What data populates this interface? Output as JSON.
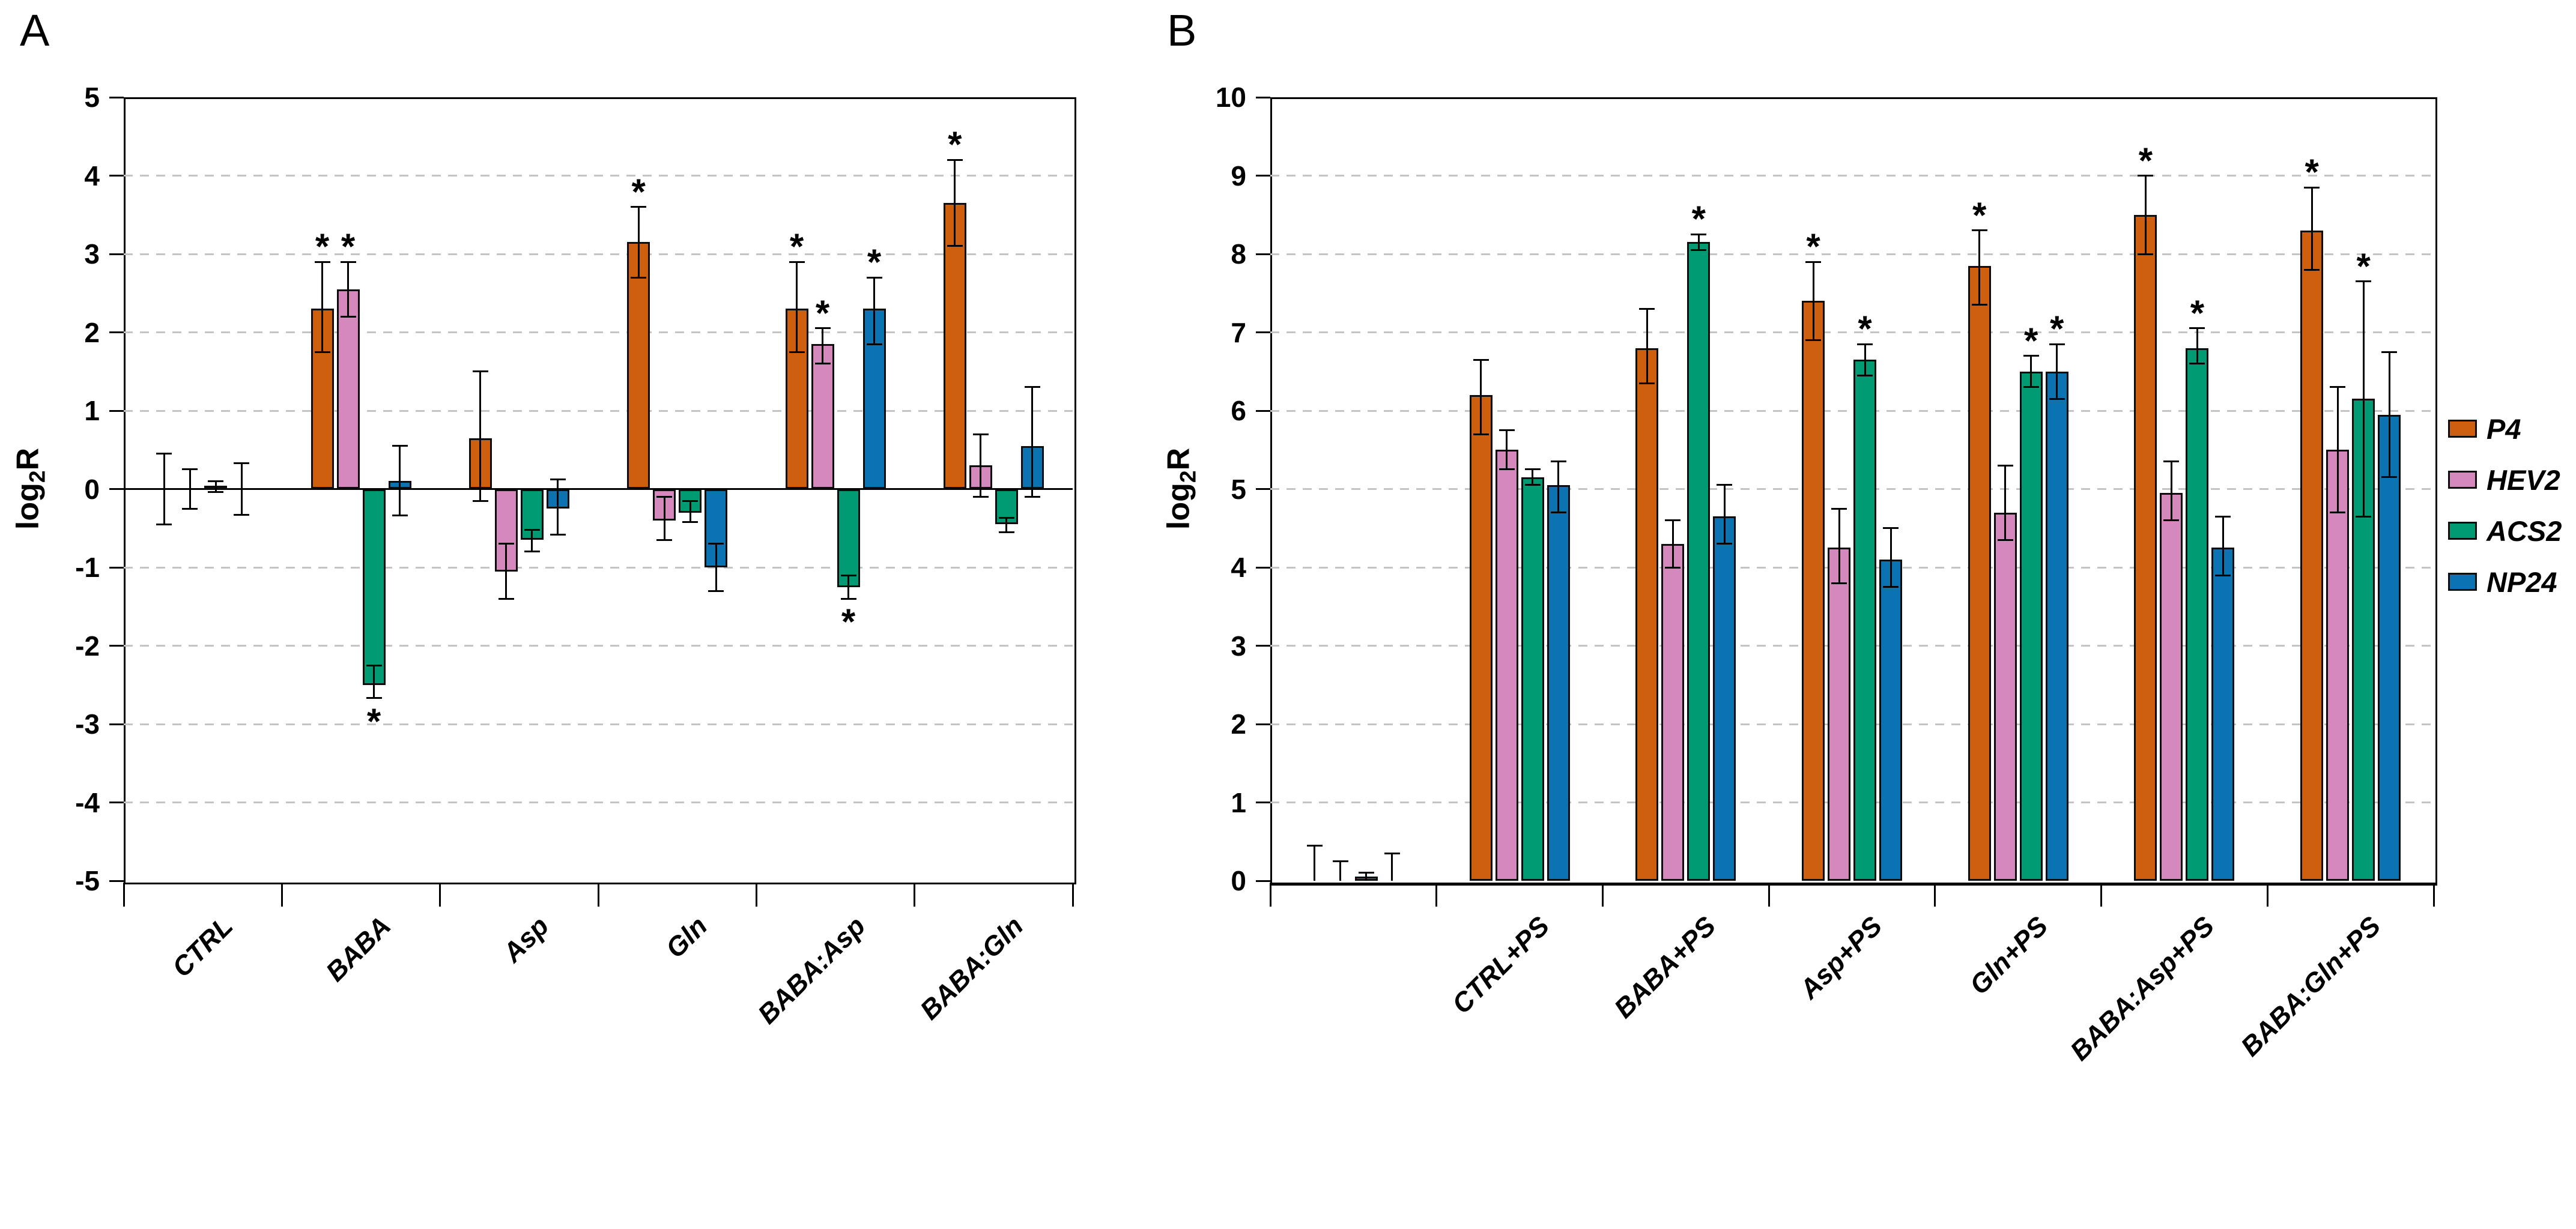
{
  "figure": {
    "background": "#FFFFFF",
    "gridline_color": "#C4C4C4",
    "axis_color": "#000000",
    "bar_border_color": "#0D0D0D"
  },
  "legend": {
    "position": "right",
    "items": [
      {
        "label": "P4",
        "color": "#CE5F0F"
      },
      {
        "label": "HEV2",
        "color": "#D588BB"
      },
      {
        "label": "ACS2",
        "color": "#009B72"
      },
      {
        "label": "NP24",
        "color": "#0B73B2"
      }
    ]
  },
  "chart_data": [
    {
      "type": "bar",
      "panel": "A",
      "title": "A",
      "ylabel": "log2R",
      "ylabel_parts": {
        "base": "log",
        "sub": "2",
        "tail": "R"
      },
      "ylim": [
        -5,
        5
      ],
      "ytick_step": 1,
      "yticks": [
        5,
        4,
        3,
        2,
        1,
        0,
        -1,
        -2,
        -3,
        -4,
        -5
      ],
      "grid": "dashed horizontal at each integer, solid line at 0",
      "categories": [
        "CTRL",
        "BABA",
        "Asp",
        "Gln",
        "BABA:Asp",
        "BABA:Gln"
      ],
      "series": [
        {
          "name": "P4",
          "color": "#CE5F0F",
          "values": [
            0,
            2.3,
            0.65,
            3.15,
            2.3,
            3.65
          ],
          "err_lo": [
            -0.45,
            1.75,
            -0.15,
            2.7,
            1.75,
            3.1
          ],
          "err_hi": [
            0.45,
            2.9,
            1.5,
            3.6,
            2.9,
            4.2
          ],
          "sig": [
            0,
            1,
            0,
            1,
            1,
            1
          ]
        },
        {
          "name": "HEV2",
          "color": "#D588BB",
          "values": [
            0,
            2.55,
            -1.05,
            -0.4,
            1.85,
            0.3
          ],
          "err_lo": [
            -0.25,
            2.2,
            -1.4,
            -0.65,
            1.6,
            -0.1
          ],
          "err_hi": [
            0.25,
            2.9,
            -0.7,
            -0.1,
            2.05,
            0.7
          ],
          "sig": [
            0,
            1,
            0,
            0,
            1,
            0
          ]
        },
        {
          "name": "ACS2",
          "color": "#009B72",
          "values": [
            0.04,
            -2.5,
            -0.65,
            -0.3,
            -1.25,
            -0.45
          ],
          "err_lo": [
            -0.04,
            -2.67,
            -0.8,
            -0.42,
            -1.4,
            -0.55
          ],
          "err_hi": [
            0.1,
            -2.25,
            -0.52,
            -0.15,
            -1.1,
            -0.37
          ],
          "sig": [
            0,
            1,
            0,
            0,
            1,
            0
          ]
        },
        {
          "name": "NP24",
          "color": "#0B73B2",
          "values": [
            0,
            0.1,
            -0.25,
            -1.0,
            2.3,
            0.55
          ],
          "err_lo": [
            -0.33,
            -0.34,
            -0.58,
            -1.3,
            1.85,
            -0.1
          ],
          "err_hi": [
            0.33,
            0.55,
            0.12,
            -0.7,
            2.7,
            1.3
          ],
          "sig": [
            0,
            0,
            0,
            0,
            1,
            0
          ]
        }
      ],
      "annotation_note": "* above (or below for negative bars) marks significant bars"
    },
    {
      "type": "bar",
      "panel": "B",
      "title": "B",
      "ylabel": "log2R",
      "ylabel_parts": {
        "base": "log",
        "sub": "2",
        "tail": "R"
      },
      "ylim": [
        0,
        10
      ],
      "ytick_step": 1,
      "yticks": [
        10,
        9,
        8,
        7,
        6,
        5,
        4,
        3,
        2,
        1,
        0
      ],
      "grid": "dashed horizontal at each integer",
      "categories": [
        "",
        "CTRL+PS",
        "BABA+PS",
        "Asp+PS",
        "Gln+PS",
        "BABA:Asp+PS",
        "BABA:Gln+PS"
      ],
      "series": [
        {
          "name": "P4",
          "color": "#CE5F0F",
          "values": [
            0,
            6.2,
            6.8,
            7.4,
            7.85,
            8.5,
            8.3
          ],
          "err_lo": [
            0,
            5.7,
            6.35,
            6.9,
            7.35,
            8.0,
            7.8
          ],
          "err_hi": [
            0.45,
            6.65,
            7.3,
            7.9,
            8.3,
            9.0,
            8.85
          ],
          "sig": [
            0,
            0,
            0,
            1,
            1,
            1,
            1
          ]
        },
        {
          "name": "HEV2",
          "color": "#D588BB",
          "values": [
            0,
            5.5,
            4.3,
            4.25,
            4.7,
            4.95,
            5.5
          ],
          "err_lo": [
            0,
            5.25,
            4.0,
            3.8,
            4.35,
            4.6,
            4.7
          ],
          "err_hi": [
            0.25,
            5.75,
            4.6,
            4.75,
            5.3,
            5.35,
            6.3
          ],
          "sig": [
            0,
            0,
            0,
            0,
            0,
            0,
            0
          ]
        },
        {
          "name": "ACS2",
          "color": "#009B72",
          "values": [
            0.05,
            5.15,
            8.15,
            6.65,
            6.5,
            6.8,
            6.15
          ],
          "err_lo": [
            0,
            5.05,
            8.05,
            6.45,
            6.3,
            6.6,
            4.65
          ],
          "err_hi": [
            0.1,
            5.25,
            8.25,
            6.85,
            6.7,
            7.05,
            7.65
          ],
          "sig": [
            0,
            0,
            1,
            1,
            1,
            1,
            1
          ]
        },
        {
          "name": "NP24",
          "color": "#0B73B2",
          "values": [
            0,
            5.05,
            4.65,
            4.1,
            6.5,
            4.25,
            5.95
          ],
          "err_lo": [
            0,
            4.7,
            4.3,
            3.75,
            6.15,
            3.9,
            5.15
          ],
          "err_hi": [
            0.35,
            5.35,
            5.05,
            4.5,
            6.85,
            4.65,
            6.75
          ],
          "sig": [
            0,
            0,
            0,
            0,
            1,
            0,
            0
          ]
        }
      ],
      "annotation_note": "first unlabeled group shows near-zero control bars with error whiskers only"
    }
  ]
}
